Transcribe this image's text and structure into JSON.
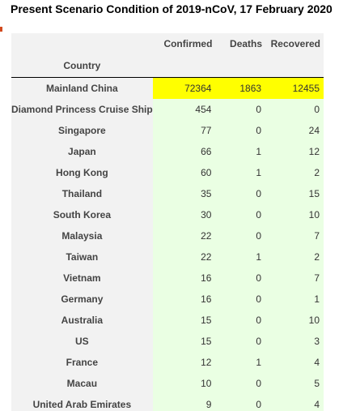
{
  "title": "Present Scenario Condition of 2019-nCoV, 17 February 2020",
  "colors": {
    "highlight": "#ffff00",
    "cell_bg": "#eaffe3",
    "header_bg": "#f2f2f2"
  },
  "table": {
    "columns": [
      "Confirmed",
      "Deaths",
      "Recovered"
    ],
    "index_label": "Country",
    "rows": [
      {
        "country": "Mainland China",
        "confirmed": "72364",
        "deaths": "1863",
        "recovered": "12455"
      },
      {
        "country": "Diamond Princess Cruise Ship",
        "confirmed": "454",
        "deaths": "0",
        "recovered": "0"
      },
      {
        "country": "Singapore",
        "confirmed": "77",
        "deaths": "0",
        "recovered": "24"
      },
      {
        "country": "Japan",
        "confirmed": "66",
        "deaths": "1",
        "recovered": "12"
      },
      {
        "country": "Hong Kong",
        "confirmed": "60",
        "deaths": "1",
        "recovered": "2"
      },
      {
        "country": "Thailand",
        "confirmed": "35",
        "deaths": "0",
        "recovered": "15"
      },
      {
        "country": "South Korea",
        "confirmed": "30",
        "deaths": "0",
        "recovered": "10"
      },
      {
        "country": "Malaysia",
        "confirmed": "22",
        "deaths": "0",
        "recovered": "7"
      },
      {
        "country": "Taiwan",
        "confirmed": "22",
        "deaths": "1",
        "recovered": "2"
      },
      {
        "country": "Vietnam",
        "confirmed": "16",
        "deaths": "0",
        "recovered": "7"
      },
      {
        "country": "Germany",
        "confirmed": "16",
        "deaths": "0",
        "recovered": "1"
      },
      {
        "country": "Australia",
        "confirmed": "15",
        "deaths": "0",
        "recovered": "10"
      },
      {
        "country": "US",
        "confirmed": "15",
        "deaths": "0",
        "recovered": "3"
      },
      {
        "country": "France",
        "confirmed": "12",
        "deaths": "1",
        "recovered": "4"
      },
      {
        "country": "Macau",
        "confirmed": "10",
        "deaths": "0",
        "recovered": "5"
      },
      {
        "country": "United Arab Emirates",
        "confirmed": "9",
        "deaths": "0",
        "recovered": "4"
      }
    ]
  }
}
